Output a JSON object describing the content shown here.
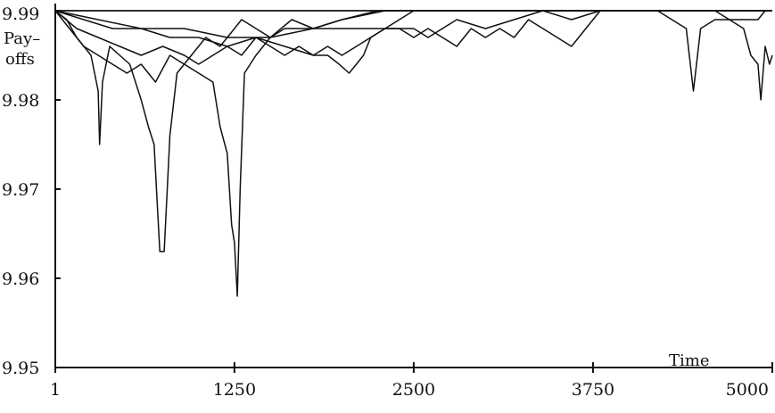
{
  "chart_data": {
    "type": "line",
    "title": "",
    "xlabel": "Time",
    "ylabel_line1": "Pay–",
    "ylabel_line2": "offs",
    "xlim": [
      1,
      5000
    ],
    "ylim": [
      9.95,
      9.99
    ],
    "x_ticks": [
      1,
      1250,
      2500,
      3750,
      5000
    ],
    "x_tick_labels": [
      "1",
      "1250",
      "2500",
      "3750",
      "5000"
    ],
    "y_ticks": [
      9.95,
      9.96,
      9.97,
      9.98,
      9.99
    ],
    "y_tick_labels": [
      "9.95",
      "9.96",
      "9.97",
      "9.98",
      "9.99"
    ],
    "grid": false,
    "legend": "none",
    "line_color": "#111111",
    "series": [
      {
        "x": [
          1,
          80,
          150,
          200,
          250,
          300,
          310,
          330,
          380,
          450,
          520,
          600,
          650,
          690,
          730,
          760,
          800,
          850,
          950,
          1050,
          1150,
          1250,
          1300,
          1400,
          1500,
          1650,
          1800,
          2000,
          2250,
          2500,
          2700,
          3000,
          3500,
          5000
        ],
        "y": [
          9.99,
          9.989,
          9.987,
          9.986,
          9.985,
          9.981,
          9.975,
          9.982,
          9.986,
          9.985,
          9.984,
          9.98,
          9.977,
          9.975,
          9.963,
          9.963,
          9.976,
          9.983,
          9.985,
          9.987,
          9.986,
          9.988,
          9.989,
          9.988,
          9.987,
          9.989,
          9.988,
          9.989,
          9.99,
          9.99,
          9.99,
          9.99,
          9.99,
          9.99
        ]
      },
      {
        "x": [
          1,
          100,
          200,
          300,
          400,
          500,
          600,
          700,
          800,
          900,
          1000,
          1100,
          1150,
          1200,
          1230,
          1250,
          1270,
          1290,
          1320,
          1400,
          1500,
          1600,
          1800,
          2000,
          2300,
          2600,
          3000,
          5000
        ],
        "y": [
          9.99,
          9.988,
          9.986,
          9.985,
          9.984,
          9.983,
          9.984,
          9.982,
          9.985,
          9.984,
          9.983,
          9.982,
          9.977,
          9.974,
          9.966,
          9.964,
          9.958,
          9.97,
          9.983,
          9.985,
          9.987,
          9.988,
          9.988,
          9.989,
          9.99,
          9.99,
          9.99,
          9.99
        ]
      },
      {
        "x": [
          1,
          150,
          300,
          450,
          600,
          750,
          900,
          1000,
          1100,
          1200,
          1300,
          1400,
          1500,
          1600,
          1700,
          1800,
          1900,
          1980,
          2050,
          2100,
          2150,
          2200,
          2300,
          2400,
          2500,
          2700,
          3000,
          5000
        ],
        "y": [
          9.99,
          9.988,
          9.987,
          9.986,
          9.985,
          9.986,
          9.985,
          9.984,
          9.985,
          9.986,
          9.985,
          9.987,
          9.986,
          9.985,
          9.986,
          9.985,
          9.985,
          9.984,
          9.983,
          9.984,
          9.985,
          9.987,
          9.988,
          9.989,
          9.99,
          9.99,
          9.99,
          9.99
        ]
      },
      {
        "x": [
          1,
          200,
          400,
          600,
          800,
          1000,
          1200,
          1400,
          1600,
          1800,
          1900,
          2000,
          2100,
          2200,
          2300,
          2400,
          2500,
          2600,
          2800,
          3000,
          3200,
          3400,
          3600,
          3800,
          4000,
          4200,
          4400,
          4600,
          4800,
          5000
        ],
        "y": [
          9.99,
          9.989,
          9.988,
          9.988,
          9.987,
          9.987,
          9.986,
          9.987,
          9.986,
          9.985,
          9.986,
          9.985,
          9.986,
          9.987,
          9.988,
          9.988,
          9.988,
          9.987,
          9.989,
          9.988,
          9.989,
          9.99,
          9.989,
          9.99,
          9.99,
          9.99,
          9.99,
          9.99,
          9.99,
          9.99
        ]
      },
      {
        "x": [
          1,
          300,
          600,
          900,
          1200,
          1500,
          1800,
          2100,
          2400,
          2500,
          2600,
          2800,
          2900,
          3000,
          3100,
          3200,
          3300,
          3400,
          3500,
          3600,
          3700,
          3800,
          4000,
          4200,
          4300,
          4400,
          4450,
          4500,
          4600,
          4700,
          4800,
          4900,
          4950,
          5000
        ],
        "y": [
          9.99,
          9.989,
          9.988,
          9.988,
          9.987,
          9.987,
          9.988,
          9.988,
          9.988,
          9.987,
          9.988,
          9.986,
          9.988,
          9.987,
          9.988,
          9.987,
          9.989,
          9.988,
          9.987,
          9.986,
          9.988,
          9.99,
          9.99,
          9.99,
          9.989,
          9.988,
          9.981,
          9.988,
          9.989,
          9.989,
          9.989,
          9.989,
          9.99,
          9.99
        ]
      },
      {
        "x": [
          1,
          400,
          800,
          1200,
          1600,
          2000,
          2400,
          2800,
          3200,
          3600,
          4000,
          4200,
          4400,
          4600,
          4700,
          4800,
          4850,
          4900,
          4920,
          4950,
          4980,
          5000
        ],
        "y": [
          9.99,
          9.99,
          9.99,
          9.99,
          9.99,
          9.99,
          9.99,
          9.99,
          9.99,
          9.99,
          9.99,
          9.99,
          9.99,
          9.99,
          9.989,
          9.988,
          9.985,
          9.984,
          9.98,
          9.986,
          9.984,
          9.985
        ]
      }
    ]
  }
}
